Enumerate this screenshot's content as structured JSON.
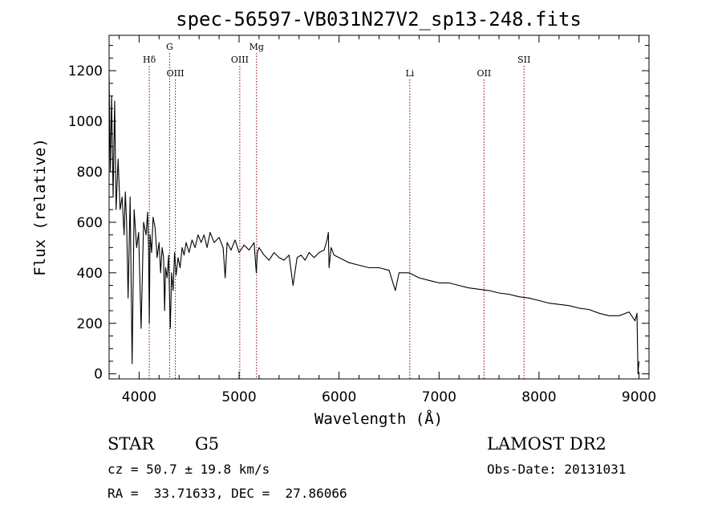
{
  "chart_data": {
    "type": "line",
    "title": "spec-56597-VB031N27V2_sp13-248.fits",
    "xlabel": "Wavelength (Å)",
    "ylabel": "Flux (relative)",
    "xlim": [
      3700,
      9100
    ],
    "ylim": [
      -20,
      1340
    ],
    "x_ticks": [
      4000,
      5000,
      6000,
      7000,
      8000,
      9000
    ],
    "y_ticks": [
      0,
      200,
      400,
      600,
      800,
      1000,
      1200
    ],
    "grid": false,
    "line_color": "#000000",
    "marker_color": "#8b0000",
    "spectral_lines": [
      {
        "label": "Hδ",
        "wavelength": 4102,
        "label_level": 2
      },
      {
        "label": "G",
        "wavelength": 4305,
        "label_level": 1
      },
      {
        "label": "OIII",
        "wavelength": 4363,
        "label_level": 3
      },
      {
        "label": "OIII",
        "wavelength": 5007,
        "label_level": 2
      },
      {
        "label": "Mg",
        "wavelength": 5175,
        "label_level": 1
      },
      {
        "label": "Li",
        "wavelength": 6708,
        "label_level": 3
      },
      {
        "label": "OII",
        "wavelength": 7450,
        "label_level": 3
      },
      {
        "label": "SII",
        "wavelength": 7850,
        "label_level": 2
      }
    ],
    "series": [
      {
        "x": [
          3700,
          3712,
          3725,
          3740,
          3755,
          3770,
          3790,
          3810,
          3830,
          3850,
          3862,
          3875,
          3890,
          3910,
          3930,
          3950,
          3975,
          3995,
          4020,
          4045,
          4070,
          4085,
          4095,
          4102,
          4110,
          4125,
          4140,
          4160,
          4180,
          4200,
          4215,
          4230,
          4245,
          4255,
          4265,
          4280,
          4295,
          4305,
          4312,
          4325,
          4340,
          4355,
          4370,
          4390,
          4410,
          4430,
          4450,
          4470,
          4500,
          4530,
          4560,
          4590,
          4620,
          4650,
          4680,
          4710,
          4750,
          4800,
          4840,
          4861,
          4880,
          4920,
          4960,
          5000,
          5050,
          5100,
          5150,
          5172,
          5183,
          5200,
          5250,
          5300,
          5350,
          5400,
          5450,
          5500,
          5540,
          5580,
          5620,
          5660,
          5700,
          5750,
          5800,
          5850,
          5880,
          5893,
          5900,
          5920,
          5950,
          6000,
          6100,
          6200,
          6300,
          6400,
          6500,
          6563,
          6600,
          6700,
          6800,
          6900,
          7000,
          7100,
          7200,
          7300,
          7400,
          7500,
          7600,
          7700,
          7800,
          7900,
          8000,
          8100,
          8200,
          8300,
          8400,
          8500,
          8600,
          8700,
          8800,
          8900,
          8960,
          8980,
          8990,
          9000
        ],
        "y": [
          1180,
          800,
          1100,
          700,
          1080,
          650,
          850,
          650,
          700,
          550,
          720,
          600,
          300,
          700,
          40,
          650,
          500,
          560,
          180,
          600,
          550,
          640,
          500,
          200,
          550,
          480,
          620,
          580,
          460,
          520,
          400,
          500,
          460,
          250,
          420,
          380,
          470,
          300,
          180,
          400,
          330,
          480,
          390,
          460,
          420,
          500,
          470,
          520,
          480,
          530,
          500,
          550,
          520,
          550,
          500,
          560,
          520,
          540,
          500,
          380,
          520,
          490,
          530,
          480,
          510,
          490,
          520,
          400,
          480,
          500,
          470,
          450,
          480,
          460,
          450,
          470,
          350,
          460,
          470,
          450,
          480,
          460,
          480,
          490,
          530,
          560,
          420,
          500,
          470,
          460,
          440,
          430,
          420,
          420,
          410,
          330,
          400,
          400,
          380,
          370,
          360,
          360,
          350,
          340,
          335,
          330,
          320,
          315,
          305,
          300,
          290,
          280,
          275,
          270,
          260,
          255,
          240,
          230,
          230,
          245,
          210,
          240,
          0,
          50
        ]
      }
    ]
  },
  "info": {
    "object_class": "STAR",
    "subclass": "G5",
    "survey": "LAMOST DR2",
    "redshift": "cz = 50.7 ± 19.8 km/s",
    "obs_date": "Obs-Date: 20131031",
    "coords": "RA =  33.71633, DEC =  27.86066"
  }
}
